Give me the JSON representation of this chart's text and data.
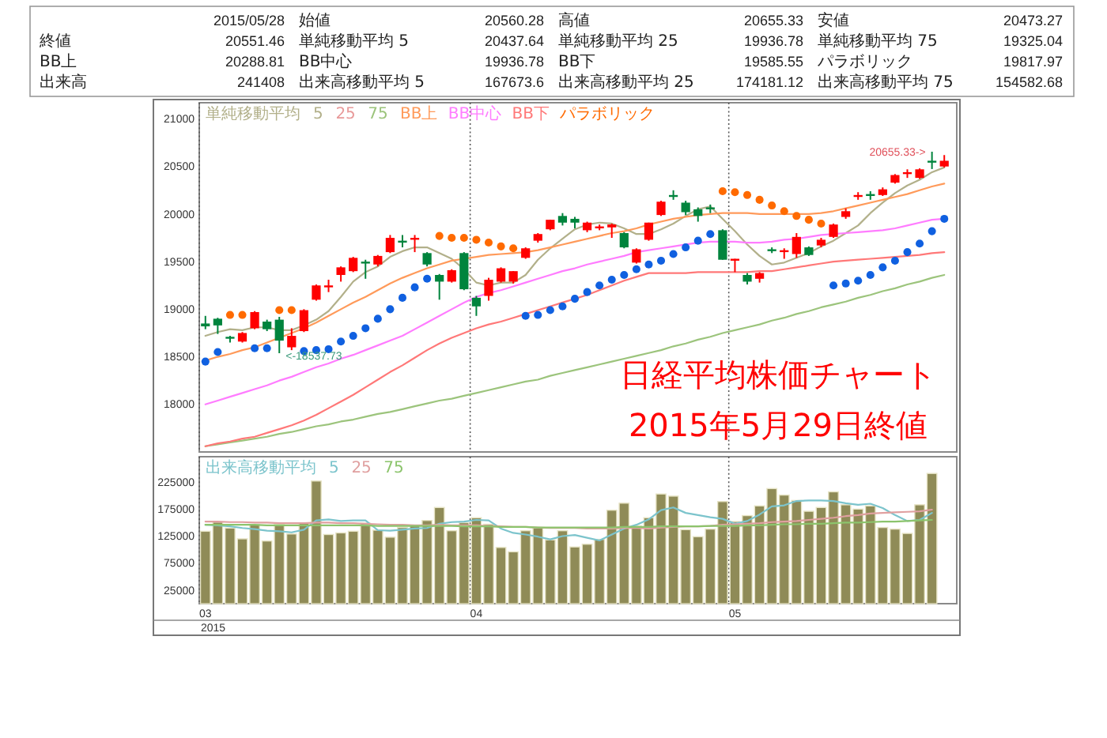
{
  "chart_data": [
    {
      "type": "candlestick",
      "title": "日経平均株価チャート",
      "subtitle": "2015年5月29日終値",
      "categories": [
        "03",
        null,
        null,
        null,
        null,
        null,
        null,
        null,
        null,
        null,
        null,
        null,
        null,
        null,
        null,
        null,
        null,
        null,
        null,
        null,
        null,
        null,
        "04",
        null,
        null,
        null,
        null,
        null,
        null,
        null,
        null,
        null,
        null,
        null,
        null,
        null,
        null,
        null,
        null,
        null,
        null,
        null,
        null,
        "05",
        null,
        null,
        null,
        null,
        null,
        null,
        null,
        null,
        null,
        null,
        null,
        null,
        null,
        null,
        null,
        null,
        null
      ],
      "ohlc": [
        [
          18850,
          18930,
          18790,
          18820
        ],
        [
          18900,
          18910,
          18740,
          18830
        ],
        [
          18710,
          18720,
          18650,
          18700
        ],
        [
          18660,
          18760,
          18650,
          18750
        ],
        [
          18800,
          18980,
          18790,
          18970
        ],
        [
          18870,
          18890,
          18770,
          18790
        ],
        [
          18890,
          18920,
          18537.73,
          18670
        ],
        [
          18600,
          18800,
          18570,
          18720
        ],
        [
          18770,
          19000,
          18760,
          18990
        ],
        [
          19100,
          19260,
          19090,
          19250
        ],
        [
          19230,
          19310,
          19180,
          19250
        ],
        [
          19360,
          19450,
          19290,
          19440
        ],
        [
          19400,
          19550,
          19390,
          19540
        ],
        [
          19500,
          19520,
          19320,
          19480
        ],
        [
          19470,
          19570,
          19450,
          19560
        ],
        [
          19600,
          19780,
          19590,
          19750
        ],
        [
          19720,
          19780,
          19650,
          19710
        ],
        [
          19740,
          19780,
          19600,
          19750
        ],
        [
          19590,
          19600,
          19450,
          19470
        ],
        [
          19360,
          19370,
          19100,
          19290
        ],
        [
          19290,
          19420,
          19280,
          19410
        ],
        [
          19590,
          19600,
          19200,
          19210
        ],
        [
          19120,
          19140,
          18930,
          19030
        ],
        [
          19140,
          19330,
          19090,
          19310
        ],
        [
          19290,
          19440,
          19280,
          19430
        ],
        [
          19290,
          19400,
          19270,
          19400
        ],
        [
          19540,
          19650,
          19530,
          19640
        ],
        [
          19720,
          19800,
          19700,
          19790
        ],
        [
          19840,
          19940,
          19830,
          19940
        ],
        [
          19980,
          20010,
          19880,
          19910
        ],
        [
          19950,
          19970,
          19850,
          19910
        ],
        [
          19830,
          19920,
          19810,
          19910
        ],
        [
          19850,
          19890,
          19830,
          19870
        ],
        [
          19860,
          19900,
          19750,
          19890
        ],
        [
          19800,
          19810,
          19640,
          19650
        ],
        [
          19490,
          19640,
          19480,
          19630
        ],
        [
          19730,
          19910,
          19720,
          19910
        ],
        [
          19990,
          20140,
          19980,
          20130
        ],
        [
          20200,
          20250,
          20150,
          20190
        ],
        [
          20120,
          20140,
          19990,
          20020
        ],
        [
          20050,
          20070,
          19920,
          19980
        ],
        [
          20070,
          20100,
          20010,
          20060
        ],
        [
          19830,
          19840,
          19520,
          19520
        ],
        [
          19510,
          19530,
          19390,
          19530
        ],
        [
          19360,
          19380,
          19260,
          19290
        ],
        [
          19320,
          19390,
          19280,
          19380
        ],
        [
          19630,
          19650,
          19590,
          19620
        ],
        [
          19610,
          19640,
          19530,
          19620
        ],
        [
          19580,
          19800,
          19540,
          19760
        ],
        [
          19650,
          19660,
          19560,
          19570
        ],
        [
          19670,
          19750,
          19650,
          19730
        ],
        [
          19760,
          19900,
          19750,
          19890
        ],
        [
          19970,
          20060,
          19950,
          20030
        ],
        [
          20190,
          20230,
          20150,
          20200
        ],
        [
          20210,
          20240,
          20150,
          20200
        ],
        [
          20200,
          20280,
          20190,
          20260
        ],
        [
          20330,
          20420,
          20320,
          20410
        ],
        [
          20430,
          20470,
          20380,
          20440
        ],
        [
          20380,
          20480,
          20370,
          20470
        ],
        [
          20560.28,
          20655.33,
          20473.27,
          20551.46
        ],
        [
          20500,
          20620,
          20490,
          20560
        ]
      ],
      "colors": [
        "#00843d",
        "#00843d",
        "#00843d",
        "#ff0000",
        "#ff0000",
        "#00843d",
        "#00843d",
        "#ff0000",
        "#ff0000",
        "#ff0000",
        "#ff0000",
        "#ff0000",
        "#ff0000",
        "#00843d",
        "#ff0000",
        "#ff0000",
        "#00843d",
        "#ff0000",
        "#00843d",
        "#00843d",
        "#ff0000",
        "#00843d",
        "#00843d",
        "#ff0000",
        "#ff0000",
        "#ff0000",
        "#ff0000",
        "#ff0000",
        "#ff0000",
        "#00843d",
        "#00843d",
        "#ff0000",
        "#ff0000",
        "#ff0000",
        "#00843d",
        "#ff0000",
        "#ff0000",
        "#ff0000",
        "#00843d",
        "#00843d",
        "#00843d",
        "#00843d",
        "#00843d",
        "#ff0000",
        "#00843d",
        "#ff0000",
        "#00843d",
        "#ff0000",
        "#ff0000",
        "#00843d",
        "#ff0000",
        "#ff0000",
        "#ff0000",
        "#ff0000",
        "#00843d",
        "#ff0000",
        "#ff0000",
        "#ff0000",
        "#ff0000",
        "#00843d",
        "#ff0000"
      ],
      "series": [
        {
          "name": "5",
          "type": "line",
          "color": "#b2b08a",
          "values": [
            18720,
            18760,
            18790,
            18780,
            18810,
            18810,
            18780,
            18780,
            18830,
            18890,
            18980,
            19130,
            19290,
            19390,
            19450,
            19550,
            19610,
            19650,
            19650,
            19590,
            19530,
            19420,
            19280,
            19250,
            19280,
            19280,
            19360,
            19520,
            19640,
            19740,
            19840,
            19890,
            19910,
            19900,
            19850,
            19790,
            19790,
            19840,
            19900,
            19980,
            20050,
            20080,
            19950,
            19820,
            19680,
            19560,
            19470,
            19490,
            19540,
            19590,
            19660,
            19720,
            19800,
            19880,
            20010,
            20120,
            20220,
            20300,
            20360,
            20440,
            20490
          ]
        },
        {
          "name": "25",
          "type": "line",
          "color": "#e89a9a",
          "values": [
            null,
            null,
            null,
            null,
            null,
            null,
            null,
            null,
            null,
            null,
            null,
            null,
            null,
            null,
            null,
            null,
            null,
            null,
            null,
            null,
            null,
            null,
            null,
            null,
            null,
            null,
            null,
            null,
            null,
            null,
            null,
            null,
            null,
            null,
            null,
            null,
            null,
            null,
            null,
            null,
            null,
            null,
            null,
            null,
            null,
            null,
            null,
            null,
            null,
            null,
            null,
            null,
            null,
            null,
            null,
            null,
            null,
            null,
            null,
            null,
            null
          ]
        },
        {
          "name": "75",
          "type": "line",
          "color": "#9cc47c",
          "values": [
            17560,
            17580,
            17600,
            17620,
            17640,
            17660,
            17690,
            17710,
            17740,
            17770,
            17790,
            17820,
            17840,
            17870,
            17900,
            17920,
            17950,
            17980,
            18010,
            18040,
            18060,
            18090,
            18120,
            18150,
            18180,
            18210,
            18240,
            18260,
            18300,
            18330,
            18360,
            18390,
            18420,
            18450,
            18480,
            18510,
            18540,
            18570,
            18610,
            18640,
            18680,
            18710,
            18750,
            18780,
            18810,
            18840,
            18880,
            18910,
            18950,
            18980,
            19020,
            19050,
            19080,
            19120,
            19150,
            19190,
            19220,
            19260,
            19290,
            19330,
            19360
          ]
        },
        {
          "name": "BB上",
          "type": "line",
          "color": "#ff9a5a",
          "values": [
            18460,
            18500,
            18530,
            18570,
            18600,
            18650,
            18700,
            18750,
            18800,
            18860,
            18930,
            19000,
            19070,
            19130,
            19200,
            19270,
            19330,
            19380,
            19430,
            19470,
            19510,
            19530,
            19550,
            19570,
            19580,
            19590,
            19600,
            19620,
            19650,
            19680,
            19710,
            19740,
            19770,
            19800,
            19820,
            19850,
            19890,
            19920,
            19950,
            19970,
            19990,
            20000,
            20010,
            20010,
            20010,
            20000,
            20000,
            20000,
            20000,
            20000,
            20010,
            20030,
            20060,
            20090,
            20120,
            20150,
            20180,
            20210,
            20250,
            20290,
            20320
          ]
        },
        {
          "name": "BB中心",
          "type": "line",
          "color": "#ff7cff",
          "values": [
            18000,
            18040,
            18080,
            18120,
            18160,
            18200,
            18250,
            18290,
            18340,
            18390,
            18430,
            18480,
            18520,
            18570,
            18620,
            18670,
            18720,
            18790,
            18860,
            18930,
            19000,
            19070,
            19130,
            19170,
            19200,
            19240,
            19280,
            19320,
            19360,
            19400,
            19430,
            19470,
            19500,
            19530,
            19560,
            19600,
            19620,
            19640,
            19660,
            19680,
            19700,
            19710,
            19710,
            19710,
            19700,
            19700,
            19710,
            19730,
            19740,
            19760,
            19780,
            19790,
            19800,
            19810,
            19820,
            19830,
            19850,
            19880,
            19910,
            19940,
            19950
          ]
        },
        {
          "name": "BB下",
          "type": "line",
          "color": "#ff7878",
          "values": [
            17560,
            17590,
            17610,
            17640,
            17660,
            17700,
            17740,
            17780,
            17830,
            17890,
            17960,
            18030,
            18100,
            18180,
            18260,
            18340,
            18410,
            18490,
            18570,
            18640,
            18700,
            18750,
            18800,
            18840,
            18870,
            18910,
            18950,
            18990,
            19030,
            19070,
            19110,
            19150,
            19200,
            19250,
            19300,
            19340,
            19380,
            19380,
            19380,
            19380,
            19390,
            19390,
            19390,
            19390,
            19390,
            19400,
            19400,
            19420,
            19440,
            19460,
            19480,
            19500,
            19510,
            19520,
            19530,
            19540,
            19550,
            19560,
            19570,
            19590,
            19600
          ]
        },
        {
          "name": "パラボリック",
          "type": "scatter",
          "marker": "circle",
          "color": "#ff6a00",
          "values": [
            18450,
            18550,
            18940,
            18940,
            18590,
            18590,
            18990,
            18990,
            18560,
            18570,
            18580,
            18660,
            18720,
            18800,
            18900,
            19000,
            19120,
            19230,
            19320,
            19770,
            19750,
            19750,
            19730,
            19700,
            19660,
            19640,
            18930,
            18940,
            18990,
            19030,
            19110,
            19180,
            19250,
            19310,
            19360,
            19420,
            19470,
            19510,
            19580,
            19650,
            19720,
            19790,
            20240,
            20230,
            20200,
            20150,
            20090,
            20030,
            19980,
            19940,
            19900,
            19250,
            19270,
            19300,
            19360,
            19440,
            19510,
            19600,
            19690,
            19820,
            19950
          ],
          "colors": [
            "#1060e0",
            "#1060e0",
            "#ff6a00",
            "#ff6a00",
            "#1060e0",
            "#1060e0",
            "#ff6a00",
            "#ff6a00",
            "#1060e0",
            "#1060e0",
            "#1060e0",
            "#1060e0",
            "#1060e0",
            "#1060e0",
            "#1060e0",
            "#1060e0",
            "#1060e0",
            "#1060e0",
            "#1060e0",
            "#ff6a00",
            "#ff6a00",
            "#ff6a00",
            "#ff6a00",
            "#ff6a00",
            "#ff6a00",
            "#ff6a00",
            "#1060e0",
            "#1060e0",
            "#1060e0",
            "#1060e0",
            "#1060e0",
            "#1060e0",
            "#1060e0",
            "#1060e0",
            "#1060e0",
            "#1060e0",
            "#1060e0",
            "#1060e0",
            "#1060e0",
            "#1060e0",
            "#1060e0",
            "#1060e0",
            "#ff6a00",
            "#ff6a00",
            "#ff6a00",
            "#ff6a00",
            "#ff6a00",
            "#ff6a00",
            "#ff6a00",
            "#ff6a00",
            "#ff6a00",
            "#1060e0",
            "#1060e0",
            "#1060e0",
            "#1060e0",
            "#1060e0",
            "#1060e0",
            "#1060e0",
            "#1060e0",
            "#1060e0",
            "#1060e0"
          ]
        }
      ],
      "legend_title": "単純移動平均",
      "legend": "top left",
      "ylim": [
        17500,
        21170
      ],
      "yticks": [
        18000,
        18500,
        19000,
        19500,
        20000,
        20500,
        21000
      ],
      "grid": "x",
      "tick_labels": "y",
      "annotations": [
        "20655.33->",
        "<-18537.73"
      ]
    },
    {
      "type": "bar",
      "categories": [
        "03",
        null,
        null,
        null,
        null,
        null,
        null,
        null,
        null,
        null,
        null,
        null,
        null,
        null,
        null,
        null,
        null,
        null,
        null,
        null,
        null,
        null,
        "04",
        null,
        null,
        null,
        null,
        null,
        null,
        null,
        null,
        null,
        null,
        null,
        null,
        null,
        null,
        null,
        null,
        null,
        null,
        null,
        null,
        "05",
        null,
        null,
        null,
        null,
        null,
        null,
        null,
        null,
        null,
        null,
        null,
        null,
        null,
        null,
        null,
        null,
        null
      ],
      "series": [
        {
          "color": "#8f8b57",
          "values": [
            134000,
            151000,
            140000,
            120000,
            146000,
            116000,
            147000,
            129000,
            149000,
            227000,
            128000,
            131000,
            134000,
            149000,
            136000,
            123000,
            141000,
            145000,
            154000,
            178000,
            135000,
            150000,
            159000,
            147000,
            104000,
            96000,
            135000,
            140000,
            118000,
            135000,
            105000,
            110000,
            119000,
            173000,
            186000,
            144000,
            159000,
            203000,
            199000,
            137000,
            124000,
            138000,
            189000,
            152000,
            163000,
            181000,
            213000,
            201000,
            191000,
            171000,
            178000,
            207000,
            183000,
            175000,
            181000,
            141000,
            138000,
            130000,
            183000,
            241000,
            null
          ]
        },
        {
          "name": "5",
          "type": "line",
          "color": "#7cc4cc",
          "values": [
            146000,
            145000,
            143000,
            140000,
            138000,
            135000,
            134000,
            132000,
            137000,
            154000,
            156000,
            153000,
            154000,
            154000,
            136000,
            135000,
            137000,
            139000,
            140000,
            148000,
            151000,
            152000,
            155000,
            154000,
            139000,
            131000,
            128000,
            124000,
            119000,
            125000,
            127000,
            122000,
            117000,
            128000,
            139000,
            146000,
            156000,
            173000,
            178000,
            168000,
            164000,
            160000,
            157000,
            148000,
            153000,
            165000,
            180000,
            182000,
            190000,
            191000,
            191000,
            190000,
            186000,
            183000,
            185000,
            177000,
            164000,
            153000,
            155000,
            168000,
            null
          ]
        },
        {
          "name": "25",
          "type": "line",
          "color": "#e0a0a0",
          "values": [
            152000,
            152000,
            151000,
            151000,
            150000,
            150000,
            149000,
            149000,
            149000,
            150000,
            150000,
            149000,
            149000,
            148000,
            147000,
            146000,
            146000,
            145000,
            145000,
            146000,
            145000,
            145000,
            145000,
            144000,
            143000,
            142000,
            142000,
            141000,
            140000,
            140000,
            140000,
            139000,
            139000,
            139000,
            140000,
            140000,
            139000,
            141000,
            142000,
            143000,
            143000,
            144000,
            146000,
            147000,
            148000,
            149000,
            151000,
            152000,
            153000,
            155000,
            157000,
            159000,
            162000,
            164000,
            167000,
            168000,
            169000,
            170000,
            171000,
            174000,
            null
          ]
        },
        {
          "name": "75",
          "type": "line",
          "color": "#8cc46c",
          "values": [
            146000,
            146000,
            146000,
            146000,
            146000,
            145000,
            145000,
            145000,
            145000,
            145000,
            145000,
            145000,
            145000,
            145000,
            144000,
            144000,
            144000,
            144000,
            144000,
            144000,
            144000,
            143000,
            143000,
            143000,
            142000,
            142000,
            142000,
            141000,
            141000,
            141000,
            141000,
            141000,
            141000,
            141000,
            142000,
            142000,
            142000,
            143000,
            143000,
            143000,
            143000,
            144000,
            144000,
            144000,
            145000,
            145000,
            146000,
            147000,
            147000,
            148000,
            148000,
            149000,
            150000,
            150000,
            151000,
            152000,
            152000,
            153000,
            154000,
            155000,
            null
          ]
        }
      ],
      "legend_title": "出来高移動平均",
      "legend": "top left",
      "ylim": [
        0,
        272000
      ],
      "yticks": [
        25000,
        75000,
        125000,
        175000,
        225000
      ],
      "grid": "x",
      "annotations": [
        "2015"
      ]
    },
    {
      "type": "other",
      "annotations": [
        "2015/05/28",
        "始値 20560.28",
        "高値 20655.33",
        "安値 20473.27",
        "終値 20551.46",
        "単純移動平均 5 20437.64",
        "単純移動平均 25 19936.78",
        "単純移動平均 75 19325.04",
        "BB上 20288.81",
        "BB中心 19936.78",
        "BB下 19585.55",
        "パラボリック 19817.97",
        "出来高 241408",
        "出来高移動平均 5 167673.6",
        "出来高移動平均 25 174181.12",
        "出来高移動平均 75 154582.68"
      ]
    }
  ]
}
